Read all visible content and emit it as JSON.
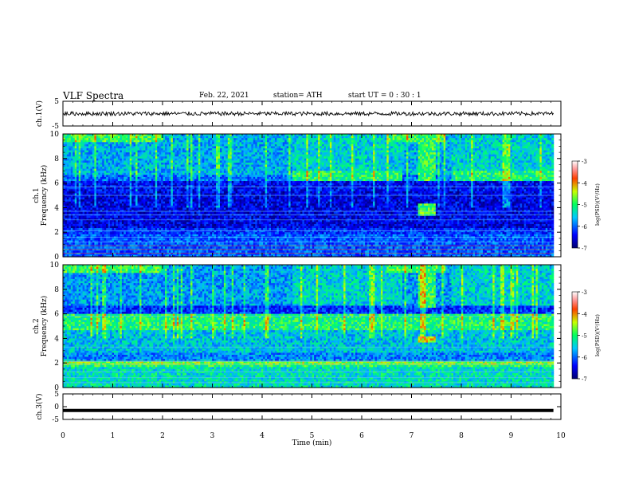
{
  "header": {
    "title": "VLF Spectra",
    "date": "Feb. 22, 2021",
    "station": "station= ATH",
    "start": "start  UT =   0  : 30 : 1"
  },
  "chart_data": [
    {
      "type": "line",
      "panel": "ch1-waveform",
      "ylabel": "ch.1(V)",
      "ylim": [
        -5,
        5
      ],
      "yticks": [
        "5",
        "-5"
      ],
      "xlim": [
        0,
        10
      ],
      "level": 0
    },
    {
      "type": "heatmap",
      "panel": "ch1-spectrogram",
      "ylabel": "ch.1\nFrequency  (kHz)",
      "ylim": [
        0,
        10
      ],
      "yticks": [
        "0",
        "2",
        "4",
        "6",
        "8",
        "10"
      ],
      "xlim": [
        0,
        10
      ],
      "data_end_min": 9.85,
      "colorbar": {
        "label": "log(PSD)(V²/Hz)",
        "range": [
          -7,
          -3
        ],
        "ticks": [
          "-3",
          "-4",
          "-5",
          "-6",
          "-7"
        ]
      }
    },
    {
      "type": "heatmap",
      "panel": "ch2-spectrogram",
      "ylabel": "ch.2\nFrequency  (kHz)",
      "ylim": [
        0,
        10
      ],
      "yticks": [
        "0",
        "2",
        "4",
        "6",
        "8",
        "10"
      ],
      "xlim": [
        0,
        10
      ],
      "data_end_min": 9.85,
      "colorbar": {
        "label": "log(PSD)(V²/Hz)",
        "range": [
          -7,
          -3
        ],
        "ticks": [
          "-3",
          "-4",
          "-5",
          "-6",
          "-7"
        ]
      }
    },
    {
      "type": "line",
      "panel": "ch3-waveform",
      "ylabel": "ch.3(V)",
      "ylim": [
        -5,
        5
      ],
      "yticks": [
        "5",
        "0",
        "-5"
      ],
      "xlim": [
        0,
        10
      ],
      "level": -1.5
    }
  ],
  "xaxis": {
    "label": "Time  (min)",
    "ticks": [
      "0",
      "1",
      "2",
      "3",
      "4",
      "5",
      "6",
      "7",
      "8",
      "9",
      "10"
    ]
  },
  "colors": {
    "axes": "#000000",
    "trace": "#000000"
  }
}
